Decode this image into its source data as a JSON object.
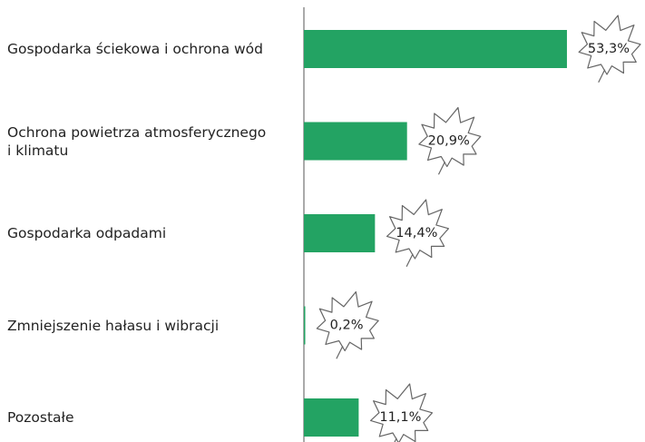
{
  "chart_data": {
    "type": "bar",
    "orientation": "horizontal",
    "categories": [
      "Gospodarka ściekowa i ochrona wód",
      "Ochrona powietrza atmosferycznego\ni klimatu",
      "Gospodarka odpadami",
      "Zmniejszenie hałasu i wibracji",
      "Pozostałe"
    ],
    "values": [
      53.3,
      20.9,
      14.4,
      0.2,
      11.1
    ],
    "value_labels": [
      "53,3%",
      "20,9%",
      "14,4%",
      "0,2%",
      "11,1%"
    ],
    "color": "#23a363"
  }
}
